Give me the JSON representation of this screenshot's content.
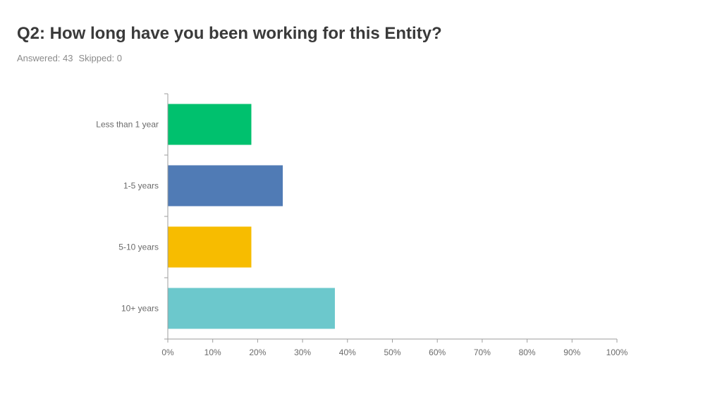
{
  "header": {
    "title": "Q2: How long have you been working for this Entity?",
    "answered_label": "Answered: 43",
    "skipped_label": "Skipped: 0"
  },
  "colors": {
    "axis": "#9e9e9e",
    "tick_text": "#6b6b6b"
  },
  "chart_data": {
    "type": "bar",
    "orientation": "horizontal",
    "categories": [
      "Less than 1 year",
      "1-5 years",
      "5-10 years",
      "10+ years"
    ],
    "values": [
      18.6,
      25.6,
      18.6,
      37.2
    ],
    "colors": [
      "#00c16e",
      "#507bb5",
      "#f7bc00",
      "#6cc8cc"
    ],
    "xlim": [
      0,
      100
    ],
    "xticks": [
      "0%",
      "10%",
      "20%",
      "30%",
      "40%",
      "50%",
      "60%",
      "70%",
      "80%",
      "90%",
      "100%"
    ],
    "grid": false,
    "legend": "none"
  }
}
